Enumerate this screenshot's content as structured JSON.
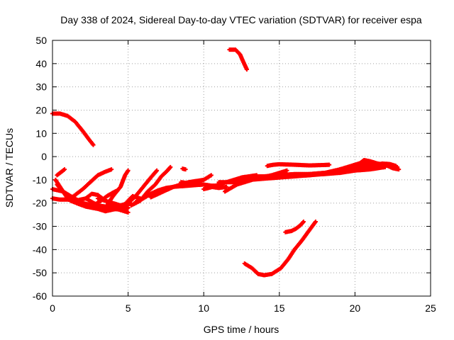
{
  "chart_data": {
    "type": "scatter",
    "title": "Day 338 of 2024, Sidereal Day-to-day VTEC variation (SDTVAR) for receiver espa",
    "xlabel": "GPS time / hours",
    "ylabel": "SDTVAR / TECUs",
    "xlim": [
      0,
      25
    ],
    "ylim": [
      -60,
      50
    ],
    "xticks": [
      "0",
      "5",
      "10",
      "15",
      "20",
      "25"
    ],
    "yticks": [
      "50",
      "40",
      "30",
      "20",
      "10",
      "0",
      "-10",
      "-20",
      "-30",
      "-40",
      "-50",
      "-60"
    ],
    "grid": true,
    "marker": "+",
    "color": "#ff0000",
    "series": [
      {
        "points": [
          [
            0,
            18.5
          ],
          [
            0.5,
            18.5
          ],
          [
            1.0,
            17.5
          ],
          [
            1.5,
            15
          ],
          [
            2.0,
            11
          ],
          [
            2.4,
            7.5
          ],
          [
            2.7,
            5
          ]
        ]
      },
      {
        "points": [
          [
            11.7,
            46
          ],
          [
            12.1,
            46
          ],
          [
            12.4,
            44
          ],
          [
            12.6,
            41
          ],
          [
            12.85,
            37.5
          ]
        ]
      },
      {
        "points": [
          [
            12.7,
            -46
          ],
          [
            13.2,
            -48
          ],
          [
            13.6,
            -50.5
          ],
          [
            14.0,
            -51
          ],
          [
            14.5,
            -50.5
          ],
          [
            15.1,
            -48
          ],
          [
            15.6,
            -44
          ],
          [
            16.0,
            -40
          ],
          [
            16.5,
            -36
          ],
          [
            17.0,
            -31.5
          ],
          [
            17.4,
            -28
          ]
        ]
      },
      {
        "points": [
          [
            15.4,
            -32.5
          ],
          [
            15.8,
            -32
          ],
          [
            16.1,
            -31
          ],
          [
            16.4,
            -29.5
          ],
          [
            16.6,
            -28
          ]
        ]
      },
      {
        "points": [
          [
            0.2,
            -10
          ],
          [
            0.6,
            -14
          ],
          [
            1.0,
            -18
          ],
          [
            1.6,
            -20
          ],
          [
            2.2,
            -21.5
          ],
          [
            3.0,
            -22.5
          ],
          [
            3.5,
            -23.5
          ],
          [
            4.2,
            -22.5
          ],
          [
            5.0,
            -22
          ]
        ]
      },
      {
        "points": [
          [
            0.3,
            -12
          ],
          [
            0.8,
            -16
          ],
          [
            1.2,
            -19
          ],
          [
            2.0,
            -21
          ],
          [
            3.0,
            -22
          ],
          [
            4.0,
            -21.5
          ],
          [
            4.6,
            -21
          ],
          [
            5.2,
            -20
          ]
        ]
      },
      {
        "points": [
          [
            0.0,
            -14
          ],
          [
            0.7,
            -15
          ],
          [
            1.2,
            -17
          ],
          [
            2.0,
            -20
          ],
          [
            3.0,
            -21.5
          ],
          [
            4.0,
            -22.5
          ],
          [
            4.8,
            -23
          ],
          [
            5.0,
            -22
          ]
        ]
      },
      {
        "points": [
          [
            0.0,
            -18
          ],
          [
            0.5,
            -18.5
          ],
          [
            1.0,
            -18.5
          ],
          [
            1.5,
            -19
          ],
          [
            2.2,
            -18
          ],
          [
            3.0,
            -21
          ],
          [
            4.0,
            -22
          ],
          [
            5.0,
            -24
          ]
        ]
      },
      {
        "points": [
          [
            0.3,
            -8
          ],
          [
            0.6,
            -6.5
          ],
          [
            0.8,
            -5.5
          ]
        ]
      },
      {
        "points": [
          [
            1.2,
            -18
          ],
          [
            2.0,
            -14
          ],
          [
            2.5,
            -11
          ],
          [
            3.0,
            -8
          ],
          [
            3.5,
            -6.5
          ],
          [
            3.9,
            -5.5
          ]
        ]
      },
      {
        "points": [
          [
            2.2,
            -18
          ],
          [
            2.6,
            -16
          ],
          [
            3.0,
            -16.5
          ],
          [
            3.5,
            -19
          ],
          [
            4.0,
            -20
          ],
          [
            4.5,
            -21
          ],
          [
            5.0,
            -21
          ]
        ]
      },
      {
        "points": [
          [
            2.7,
            -21
          ],
          [
            3.2,
            -19
          ],
          [
            3.6,
            -17
          ],
          [
            4.0,
            -15.5
          ],
          [
            4.3,
            -14.5
          ]
        ]
      },
      {
        "points": [
          [
            3.0,
            -18
          ],
          [
            3.5,
            -19
          ],
          [
            4.2,
            -21
          ],
          [
            4.6,
            -22
          ],
          [
            5.0,
            -19
          ],
          [
            5.3,
            -17
          ],
          [
            5.8,
            -18
          ]
        ]
      },
      {
        "points": [
          [
            3.5,
            -22
          ],
          [
            4.0,
            -17
          ],
          [
            4.5,
            -13
          ],
          [
            4.8,
            -8
          ],
          [
            5.0,
            -6
          ]
        ]
      },
      {
        "points": [
          [
            4.5,
            -21
          ],
          [
            5.0,
            -20
          ],
          [
            5.5,
            -17
          ],
          [
            6.0,
            -13
          ],
          [
            6.5,
            -9
          ],
          [
            6.9,
            -6
          ]
        ]
      },
      {
        "points": [
          [
            5.2,
            -21
          ],
          [
            5.8,
            -19
          ],
          [
            6.3,
            -15
          ],
          [
            6.8,
            -12
          ],
          [
            7.2,
            -8.5
          ],
          [
            7.6,
            -6
          ],
          [
            7.8,
            -4.5
          ]
        ]
      },
      {
        "points": [
          [
            5.5,
            -19.5
          ],
          [
            6.0,
            -18
          ],
          [
            6.5,
            -16
          ],
          [
            7.0,
            -14.5
          ],
          [
            7.5,
            -13.5
          ],
          [
            8.0,
            -13
          ],
          [
            9.0,
            -12.5
          ],
          [
            10.0,
            -12
          ],
          [
            10.5,
            -12.5
          ],
          [
            11.0,
            -12.5
          ]
        ]
      },
      {
        "points": [
          [
            6.5,
            -17.5
          ],
          [
            7.0,
            -16
          ],
          [
            7.5,
            -14.5
          ],
          [
            8.0,
            -13
          ],
          [
            8.5,
            -12
          ],
          [
            9.0,
            -11
          ],
          [
            9.5,
            -10.5
          ],
          [
            10.0,
            -10
          ],
          [
            10.5,
            -8
          ]
        ]
      },
      {
        "points": [
          [
            8.6,
            -5.2
          ],
          [
            8.8,
            -5.5
          ]
        ]
      },
      {
        "points": [
          [
            8.5,
            -11
          ],
          [
            9.0,
            -11.5
          ],
          [
            10.0,
            -12
          ],
          [
            10.5,
            -13
          ],
          [
            11.0,
            -13.5
          ],
          [
            11.5,
            -13
          ]
        ]
      },
      {
        "points": [
          [
            10.0,
            -14
          ],
          [
            10.6,
            -13
          ],
          [
            11.0,
            -12
          ],
          [
            11.5,
            -11
          ],
          [
            12.0,
            -10
          ],
          [
            12.5,
            -9
          ],
          [
            13.0,
            -8.5
          ],
          [
            13.5,
            -8
          ]
        ]
      },
      {
        "points": [
          [
            11.4,
            -15
          ],
          [
            11.8,
            -13.5
          ],
          [
            12.2,
            -12
          ],
          [
            12.7,
            -11
          ],
          [
            13.2,
            -10
          ],
          [
            13.8,
            -9
          ],
          [
            14.5,
            -8
          ],
          [
            15.0,
            -7
          ],
          [
            15.5,
            -6
          ]
        ]
      },
      {
        "points": [
          [
            11.0,
            -11
          ],
          [
            12.0,
            -11
          ],
          [
            13.0,
            -10
          ],
          [
            14.0,
            -9.5
          ],
          [
            15.0,
            -9
          ],
          [
            16.0,
            -8.5
          ],
          [
            17.0,
            -8
          ],
          [
            18.0,
            -7.5
          ],
          [
            19.0,
            -7
          ],
          [
            20.0,
            -6
          ],
          [
            21.0,
            -5.5
          ],
          [
            22.0,
            -4.5
          ]
        ]
      },
      {
        "points": [
          [
            12.5,
            -9
          ],
          [
            13.0,
            -8.5
          ],
          [
            14.0,
            -8.5
          ],
          [
            15.0,
            -8
          ],
          [
            16.0,
            -7.5
          ],
          [
            17.0,
            -7.5
          ],
          [
            18.0,
            -7
          ],
          [
            19.0,
            -6.5
          ],
          [
            20.0,
            -6
          ],
          [
            20.5,
            -5
          ]
        ]
      },
      {
        "points": [
          [
            14.0,
            -9
          ],
          [
            15.0,
            -8.5
          ],
          [
            16.0,
            -8
          ],
          [
            17.0,
            -7.5
          ],
          [
            18.0,
            -7
          ],
          [
            18.5,
            -6.5
          ],
          [
            19.0,
            -5.5
          ],
          [
            19.5,
            -4.5
          ],
          [
            20.0,
            -3.5
          ],
          [
            20.5,
            -2.5
          ],
          [
            21.0,
            -2.5
          ]
        ]
      },
      {
        "points": [
          [
            14.2,
            -4
          ],
          [
            14.6,
            -3.5
          ],
          [
            15.0,
            -3.3
          ],
          [
            16.0,
            -3.5
          ],
          [
            17.0,
            -3.8
          ],
          [
            18.0,
            -3.6
          ],
          [
            18.3,
            -3.5
          ]
        ]
      },
      {
        "points": [
          [
            17.0,
            -8
          ],
          [
            18.0,
            -7
          ],
          [
            19.0,
            -5.5
          ],
          [
            20.0,
            -4
          ],
          [
            20.5,
            -3
          ],
          [
            21.0,
            -3.5
          ],
          [
            21.5,
            -3.5
          ],
          [
            22.0,
            -3.8
          ],
          [
            22.5,
            -4
          ],
          [
            22.8,
            -4.5
          ]
        ]
      },
      {
        "points": [
          [
            18.5,
            -7
          ],
          [
            19.2,
            -6.5
          ],
          [
            19.8,
            -5
          ],
          [
            20.3,
            -3
          ],
          [
            20.6,
            -1.5
          ],
          [
            21.0,
            -2
          ],
          [
            21.5,
            -3
          ],
          [
            22.0,
            -3.5
          ],
          [
            22.5,
            -5
          ],
          [
            22.9,
            -5.5
          ]
        ]
      },
      {
        "points": [
          [
            20.0,
            -5
          ],
          [
            20.6,
            -4
          ],
          [
            21.2,
            -3.8
          ],
          [
            21.8,
            -3
          ],
          [
            22.3,
            -3.2
          ],
          [
            22.7,
            -4
          ]
        ]
      }
    ]
  }
}
